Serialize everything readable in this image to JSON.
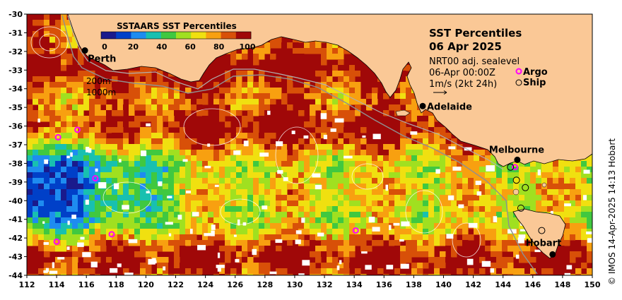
{
  "title": "SST Percentiles",
  "date": "06 Apr 2025",
  "product": "NRT00 adj. sealevel",
  "datetime": "06-Apr 00:00Z",
  "arrow_label": "1m/s (2kt 24h)",
  "legend": {
    "argo": "Argo",
    "ship": "Ship",
    "argo_color": "#ff00ff"
  },
  "colorbar": {
    "title": "SSTAARS SST Percentiles",
    "ticks": [
      "0",
      "20",
      "40",
      "60",
      "80",
      "100"
    ],
    "colors": [
      "#1a1a8c",
      "#0040c8",
      "#1e8cf0",
      "#18c0b0",
      "#40c840",
      "#a0e020",
      "#f0e010",
      "#f8a010",
      "#d85008",
      "#a00808"
    ]
  },
  "contours": {
    "shallow": "200m",
    "deep": "1000m"
  },
  "cities": [
    {
      "name": "Perth",
      "lon": 115.9,
      "lat": -31.95
    },
    {
      "name": "Adelaide",
      "lon": 138.6,
      "lat": -34.93
    },
    {
      "name": "Melbourne",
      "lon": 144.96,
      "lat": -37.81
    },
    {
      "name": "Hobart",
      "lon": 147.33,
      "lat": -42.88
    }
  ],
  "argo_floats": [
    {
      "lon": 114.1,
      "lat": -36.6
    },
    {
      "lon": 115.4,
      "lat": -36.2
    },
    {
      "lon": 116.6,
      "lat": -38.8
    },
    {
      "lon": 117.7,
      "lat": -41.8
    },
    {
      "lon": 114.0,
      "lat": -42.2
    },
    {
      "lon": 134.1,
      "lat": -41.6
    },
    {
      "lon": 144.8,
      "lat": -38.2
    }
  ],
  "ships": [
    {
      "lon": 144.5,
      "lat": -38.2
    },
    {
      "lon": 144.9,
      "lat": -38.9
    },
    {
      "lon": 145.5,
      "lat": -39.3
    },
    {
      "lon": 145.2,
      "lat": -40.4
    },
    {
      "lon": 146.6,
      "lat": -41.6
    }
  ],
  "axes": {
    "x_ticks": [
      "112",
      "114",
      "116",
      "118",
      "120",
      "122",
      "124",
      "126",
      "128",
      "130",
      "132",
      "134",
      "136",
      "138",
      "140",
      "142",
      "144",
      "146",
      "148",
      "150"
    ],
    "y_ticks": [
      "-30",
      "-31",
      "-32",
      "-33",
      "-34",
      "-35",
      "-36",
      "-37",
      "-38",
      "-39",
      "-40",
      "-41",
      "-42",
      "-43",
      "-44"
    ],
    "lon_range": [
      112,
      150
    ],
    "lat_range": [
      -44,
      -30
    ]
  },
  "credit": "© IMOS 14-Apr-2025 14:13 Hobart"
}
